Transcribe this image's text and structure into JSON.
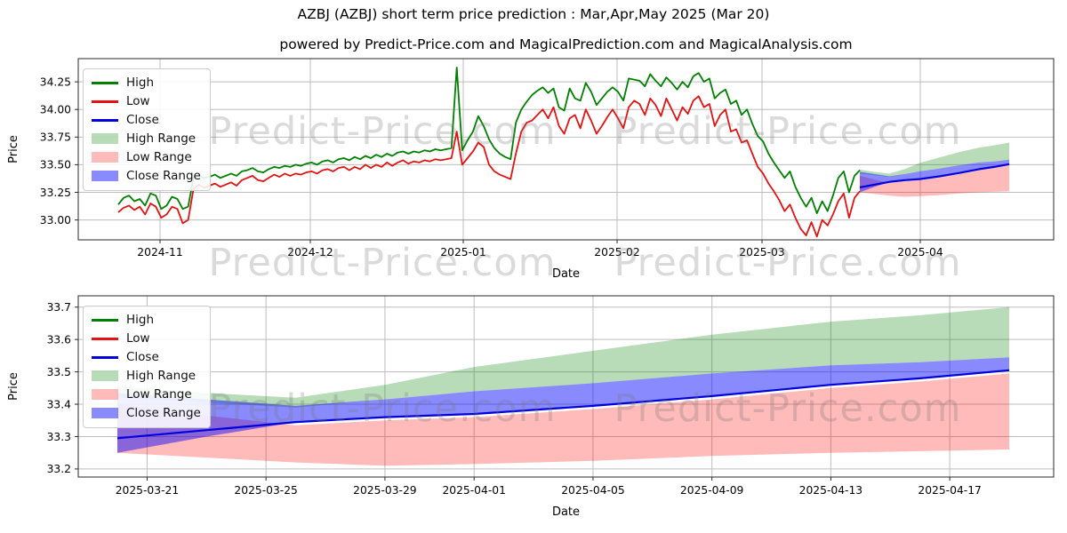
{
  "figure": {
    "title": "AZBJ (AZBJ) short term price prediction : Mar,Apr,May 2025 (Mar 20)",
    "subtitle": "powered by Predict-Price.com and MagicalPrediction.com and MagicalAnalysis.com",
    "watermark_text": "Predict-Price.com"
  },
  "colors": {
    "high": "#008000",
    "low": "#e51212",
    "close": "#0000dd",
    "high_range": "rgba(0,128,0,0.28)",
    "low_range": "rgba(255,0,0,0.27)",
    "close_range": "rgba(0,0,255,0.46)",
    "grid": "#bdbdbd",
    "spine": "#2a2a2a"
  },
  "legend": {
    "entries": [
      {
        "label": "High",
        "type": "line",
        "color": "high"
      },
      {
        "label": "Low",
        "type": "line",
        "color": "low"
      },
      {
        "label": "Close",
        "type": "line",
        "color": "close"
      },
      {
        "label": "High Range",
        "type": "patch",
        "color": "high_range"
      },
      {
        "label": "Low Range",
        "type": "patch",
        "color": "low_range"
      },
      {
        "label": "Close Range",
        "type": "patch",
        "color": "close_range"
      }
    ],
    "position": "upper left"
  },
  "chart_data": [
    {
      "type": "line",
      "name": "price-history-with-forecast",
      "xlabel": "Date",
      "ylabel": "Price",
      "grid": true,
      "x_ticks": [
        "2024-11",
        "2024-12",
        "2025-01",
        "2025-02",
        "2025-03",
        "2025-04"
      ],
      "y_ticks": [
        "33.00",
        "33.25",
        "33.50",
        "33.75",
        "34.00",
        "34.25"
      ],
      "y_tick_values": [
        33.0,
        33.25,
        33.5,
        33.75,
        34.0,
        34.25
      ],
      "ylim": [
        32.82,
        34.46
      ],
      "historical": {
        "start_date": "2024-10-22",
        "end_date": "2025-03-20",
        "series": [
          {
            "name": "High",
            "values": [
              33.14,
              33.2,
              33.22,
              33.17,
              33.19,
              33.13,
              33.24,
              33.22,
              33.1,
              33.13,
              33.21,
              33.19,
              33.1,
              33.12,
              33.38,
              33.4,
              33.38,
              33.39,
              33.41,
              33.38,
              33.4,
              33.42,
              33.4,
              33.44,
              33.45,
              33.47,
              33.44,
              33.43,
              33.46,
              33.48,
              33.47,
              33.49,
              33.48,
              33.5,
              33.49,
              33.51,
              33.52,
              33.5,
              33.53,
              33.54,
              33.52,
              33.55,
              33.56,
              33.54,
              33.57,
              33.55,
              33.58,
              33.56,
              33.59,
              33.57,
              33.6,
              33.58,
              33.61,
              33.62,
              33.6,
              33.62,
              33.61,
              33.63,
              33.62,
              33.64,
              33.63,
              33.64,
              33.65,
              34.38,
              33.63,
              33.72,
              33.8,
              33.94,
              33.85,
              33.73,
              33.65,
              33.6,
              33.57,
              33.55,
              33.88,
              34.0,
              34.07,
              34.13,
              34.17,
              34.2,
              34.15,
              34.19,
              34.02,
              33.99,
              34.19,
              34.1,
              34.08,
              34.24,
              34.16,
              34.04,
              34.1,
              34.16,
              34.2,
              34.16,
              34.08,
              34.28,
              34.27,
              34.26,
              34.21,
              34.32,
              34.26,
              34.21,
              34.29,
              34.24,
              34.18,
              34.25,
              34.2,
              34.3,
              34.33,
              34.25,
              34.28,
              34.1,
              34.15,
              34.18,
              34.05,
              34.08,
              33.95,
              34.0,
              33.87,
              33.76,
              33.71,
              33.6,
              33.52,
              33.45,
              33.38,
              33.44,
              33.3,
              33.2,
              33.12,
              33.2,
              33.06,
              33.17,
              33.08,
              33.22,
              33.38,
              33.44,
              33.25,
              33.4,
              33.45
            ]
          },
          {
            "name": "Low",
            "values": [
              33.07,
              33.11,
              33.13,
              33.09,
              33.12,
              33.05,
              33.15,
              33.12,
              33.02,
              33.05,
              33.12,
              33.1,
              32.97,
              33.0,
              33.28,
              33.32,
              33.29,
              33.31,
              33.33,
              33.3,
              33.32,
              33.34,
              33.31,
              33.36,
              33.38,
              33.4,
              33.36,
              33.35,
              33.38,
              33.41,
              33.39,
              33.42,
              33.4,
              33.42,
              33.41,
              33.43,
              33.44,
              33.42,
              33.45,
              33.46,
              33.44,
              33.47,
              33.48,
              33.45,
              33.48,
              33.46,
              33.5,
              33.47,
              33.5,
              33.48,
              33.52,
              33.49,
              33.52,
              33.54,
              33.51,
              33.53,
              33.52,
              33.54,
              33.53,
              33.55,
              33.54,
              33.55,
              33.56,
              33.8,
              33.5,
              33.56,
              33.62,
              33.7,
              33.66,
              33.5,
              33.44,
              33.41,
              33.39,
              33.37,
              33.6,
              33.8,
              33.88,
              33.9,
              33.95,
              34.0,
              33.92,
              34.02,
              33.85,
              33.78,
              33.92,
              33.95,
              33.83,
              34.0,
              33.9,
              33.78,
              33.85,
              33.93,
              34.0,
              33.92,
              33.83,
              34.02,
              34.08,
              34.05,
              33.95,
              34.1,
              34.04,
              33.94,
              34.1,
              34.0,
              33.9,
              34.02,
              33.96,
              34.08,
              34.12,
              34.02,
              34.05,
              33.85,
              33.95,
              34.0,
              33.8,
              33.82,
              33.7,
              33.72,
              33.6,
              33.48,
              33.42,
              33.33,
              33.26,
              33.18,
              33.08,
              33.14,
              33.02,
              32.92,
              32.86,
              32.98,
              32.85,
              33.0,
              32.95,
              33.05,
              33.17,
              33.24,
              33.02,
              33.2,
              33.26
            ]
          }
        ]
      },
      "forecast": {
        "start_date": "2025-03-20",
        "end_date": "2025-04-19",
        "days": [
          0,
          3,
          6,
          9,
          12,
          16,
          20,
          24,
          27,
          30
        ],
        "close": [
          33.295,
          33.32,
          33.345,
          33.36,
          33.37,
          33.395,
          33.425,
          33.46,
          33.48,
          33.505
        ],
        "close_range": {
          "top": [
            33.435,
            33.415,
            33.395,
            33.415,
            33.44,
            33.465,
            33.495,
            33.52,
            33.53,
            33.545
          ],
          "bottom": [
            33.25,
            33.3,
            33.345,
            33.36,
            33.37,
            33.395,
            33.425,
            33.46,
            33.48,
            33.505
          ]
        },
        "high_range": {
          "top": [
            33.455,
            33.435,
            33.42,
            33.46,
            33.515,
            33.565,
            33.615,
            33.655,
            33.675,
            33.7
          ],
          "bottom": [
            33.42,
            33.405,
            33.39,
            33.415,
            33.44,
            33.465,
            33.495,
            33.52,
            33.53,
            33.545
          ]
        },
        "low_range": {
          "top": [
            33.4,
            33.365,
            33.335,
            33.35,
            33.36,
            33.385,
            33.415,
            33.45,
            33.47,
            33.495
          ],
          "bottom": [
            33.25,
            33.235,
            33.22,
            33.21,
            33.215,
            33.225,
            33.24,
            33.25,
            33.255,
            33.26
          ]
        }
      }
    },
    {
      "type": "line",
      "name": "forecast-detail",
      "xlabel": "Date",
      "ylabel": "Price",
      "grid": true,
      "x_ticks": [
        "2025-03-21",
        "2025-03-25",
        "2025-03-29",
        "2025-04-01",
        "2025-04-05",
        "2025-04-09",
        "2025-04-13",
        "2025-04-17"
      ],
      "x_tick_days": [
        1,
        5,
        9,
        12,
        16,
        20,
        24,
        28
      ],
      "y_ticks": [
        "33.2",
        "33.3",
        "33.4",
        "33.5",
        "33.6",
        "33.7"
      ],
      "y_tick_values": [
        33.2,
        33.3,
        33.4,
        33.5,
        33.6,
        33.7
      ],
      "ylim": [
        33.175,
        33.735
      ],
      "forecast": {
        "start_date": "2025-03-20",
        "end_date": "2025-04-19",
        "days": [
          0,
          3,
          6,
          9,
          12,
          16,
          20,
          24,
          27,
          30
        ],
        "close": [
          33.295,
          33.32,
          33.345,
          33.36,
          33.37,
          33.395,
          33.425,
          33.46,
          33.48,
          33.505
        ],
        "close_range": {
          "top": [
            33.435,
            33.415,
            33.395,
            33.415,
            33.44,
            33.465,
            33.495,
            33.52,
            33.53,
            33.545
          ],
          "bottom": [
            33.25,
            33.3,
            33.345,
            33.36,
            33.37,
            33.395,
            33.425,
            33.46,
            33.48,
            33.505
          ]
        },
        "high_range": {
          "top": [
            33.455,
            33.435,
            33.42,
            33.46,
            33.515,
            33.565,
            33.615,
            33.655,
            33.675,
            33.7
          ],
          "bottom": [
            33.42,
            33.405,
            33.39,
            33.415,
            33.44,
            33.465,
            33.495,
            33.52,
            33.53,
            33.545
          ]
        },
        "low_range": {
          "top": [
            33.4,
            33.365,
            33.335,
            33.35,
            33.36,
            33.385,
            33.415,
            33.45,
            33.47,
            33.495
          ],
          "bottom": [
            33.25,
            33.235,
            33.22,
            33.21,
            33.215,
            33.225,
            33.24,
            33.25,
            33.255,
            33.26
          ]
        }
      }
    }
  ]
}
